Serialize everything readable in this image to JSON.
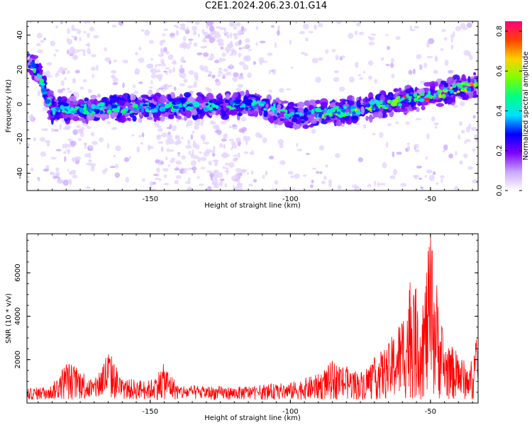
{
  "figure_title": "C2E1.2024.206.23.01.G14",
  "chart_data": [
    {
      "type": "heatmap",
      "title": "",
      "xlabel": "Height of straight line (km)",
      "ylabel": "Frequency (Hz)",
      "xlim": [
        -194,
        -33
      ],
      "ylim": [
        -50,
        48
      ],
      "xticks": [
        -150,
        -100,
        -50
      ],
      "yticks": [
        -40,
        -20,
        0,
        20,
        40
      ],
      "colorbar": {
        "label": "Normalized spectral amplitude",
        "range": [
          0,
          0.85
        ],
        "ticks": [
          0.0,
          0.2,
          0.4,
          0.6,
          0.8
        ],
        "colormap": [
          "#ffffff",
          "#c9a6ff",
          "#7e00ff",
          "#0000ff",
          "#00e0ff",
          "#00ff80",
          "#80ff00",
          "#ffd000",
          "#ff4000",
          "#ff0080"
        ]
      },
      "ridge": {
        "description_points": [
          {
            "x": -194,
            "y": 28
          },
          {
            "x": -190,
            "y": 18
          },
          {
            "x": -185,
            "y": -3
          },
          {
            "x": -150,
            "y": -2
          },
          {
            "x": -110,
            "y": 0
          },
          {
            "x": -100,
            "y": -7
          },
          {
            "x": -80,
            "y": -4
          },
          {
            "x": -60,
            "y": 2
          },
          {
            "x": -45,
            "y": 7
          },
          {
            "x": -33,
            "y": 12
          }
        ],
        "peak_amplitude_at": [
          -60,
          -45
        ],
        "peak_amplitude": 0.8
      }
    },
    {
      "type": "line",
      "title": "",
      "xlabel": "Height of straight line (km)",
      "ylabel": "SNR (10 * v/v)",
      "xlim": [
        -194,
        -33
      ],
      "ylim": [
        0,
        7800
      ],
      "xticks": [
        -150,
        -100,
        -50
      ],
      "yticks": [
        2000,
        4000,
        6000
      ],
      "series_color": "#ff0000",
      "envelope": [
        {
          "x": -194,
          "y": 500
        },
        {
          "x": -185,
          "y": 700
        },
        {
          "x": -180,
          "y": 1800
        },
        {
          "x": -175,
          "y": 1500
        },
        {
          "x": -170,
          "y": 900
        },
        {
          "x": -165,
          "y": 2400
        },
        {
          "x": -160,
          "y": 1000
        },
        {
          "x": -150,
          "y": 900
        },
        {
          "x": -145,
          "y": 1700
        },
        {
          "x": -140,
          "y": 700
        },
        {
          "x": -120,
          "y": 600
        },
        {
          "x": -100,
          "y": 800
        },
        {
          "x": -90,
          "y": 1200
        },
        {
          "x": -85,
          "y": 1800
        },
        {
          "x": -75,
          "y": 1300
        },
        {
          "x": -65,
          "y": 2600
        },
        {
          "x": -60,
          "y": 4000
        },
        {
          "x": -57,
          "y": 5800
        },
        {
          "x": -53,
          "y": 4400
        },
        {
          "x": -50,
          "y": 7800
        },
        {
          "x": -45,
          "y": 2800
        },
        {
          "x": -40,
          "y": 2200
        },
        {
          "x": -36,
          "y": 1500
        },
        {
          "x": -33,
          "y": 3500
        }
      ]
    }
  ]
}
